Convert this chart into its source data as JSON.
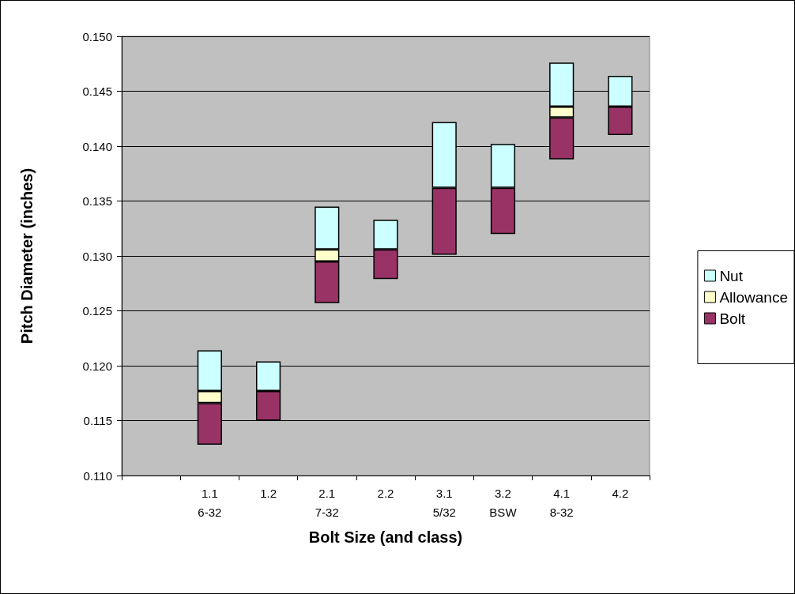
{
  "chart_data": {
    "type": "bar",
    "xlabel": "Bolt Size (and class)",
    "ylabel": "Pitch Diameter (inches)",
    "categories": [
      null,
      "1.1\n6-32",
      "1.2",
      "2.1\n7-32",
      "2.2",
      "3.1\n5/32",
      "3.2\nBSW",
      "4.1\n8-32",
      "4.2"
    ],
    "series": [
      {
        "name": "Bolt",
        "color": "#993366",
        "base": [
          null,
          0.1128,
          0.115,
          0.1257,
          0.1279,
          0.1301,
          0.132,
          0.1388,
          0.141
        ],
        "values": [
          null,
          0.0038,
          0.0027,
          0.0038,
          0.0027,
          0.0061,
          0.0042,
          0.0038,
          0.0026
        ]
      },
      {
        "name": "Allowance",
        "color": "#ffffcc",
        "base": [
          null,
          0.1166,
          null,
          0.1295,
          null,
          null,
          null,
          0.1426,
          null
        ],
        "values": [
          null,
          0.0011,
          null,
          0.0011,
          null,
          null,
          null,
          0.001,
          null
        ]
      },
      {
        "name": "Nut",
        "color": "#ccffff",
        "base": [
          null,
          0.1177,
          0.1177,
          0.1306,
          0.1306,
          0.1362,
          0.1362,
          0.1436,
          0.1436
        ],
        "values": [
          null,
          0.0037,
          0.0027,
          0.0039,
          0.0027,
          0.006,
          0.004,
          0.004,
          0.0028
        ]
      }
    ],
    "ylim": [
      0.11,
      0.15
    ],
    "yticks": [
      {
        "value": 0.11,
        "label": "0.110"
      },
      {
        "value": 0.115,
        "label": "0.115"
      },
      {
        "value": 0.12,
        "label": "0.120"
      },
      {
        "value": 0.125,
        "label": "0.125"
      },
      {
        "value": 0.13,
        "label": "0.130"
      },
      {
        "value": 0.135,
        "label": "0.135"
      },
      {
        "value": 0.14,
        "label": "0.140"
      },
      {
        "value": 0.145,
        "label": "0.145"
      },
      {
        "value": 0.15,
        "label": "0.150"
      }
    ],
    "grid": "y",
    "legend": "right"
  }
}
